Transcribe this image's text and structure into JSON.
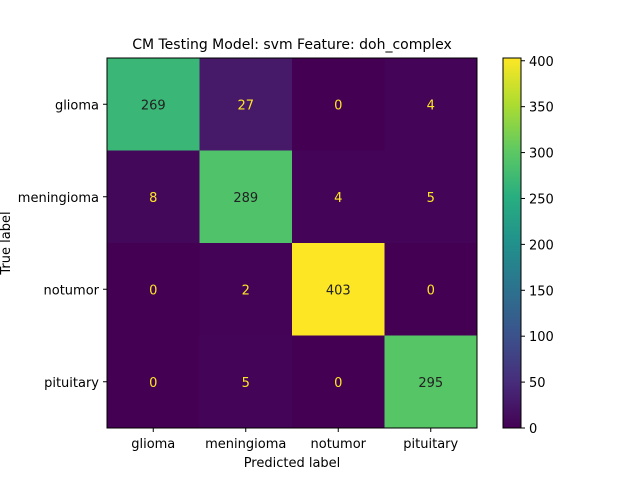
{
  "chart_data": {
    "type": "heatmap",
    "title": "CM Testing Model: svm Feature: doh_complex",
    "xlabel": "Predicted label",
    "ylabel": "True label",
    "x_categories": [
      "glioma",
      "meningioma",
      "notumor",
      "pituitary"
    ],
    "y_categories": [
      "glioma",
      "meningioma",
      "notumor",
      "pituitary"
    ],
    "values": [
      [
        269,
        27,
        0,
        4
      ],
      [
        8,
        289,
        4,
        5
      ],
      [
        0,
        2,
        403,
        0
      ],
      [
        0,
        5,
        0,
        295
      ]
    ],
    "colormap": "viridis",
    "colorbar": {
      "range": [
        0,
        403
      ],
      "ticks": [
        0,
        50,
        100,
        150,
        200,
        250,
        300,
        350,
        400
      ]
    },
    "cell_text_colors": {
      "on_dark": "#FDE725",
      "on_light": "#222222"
    }
  }
}
